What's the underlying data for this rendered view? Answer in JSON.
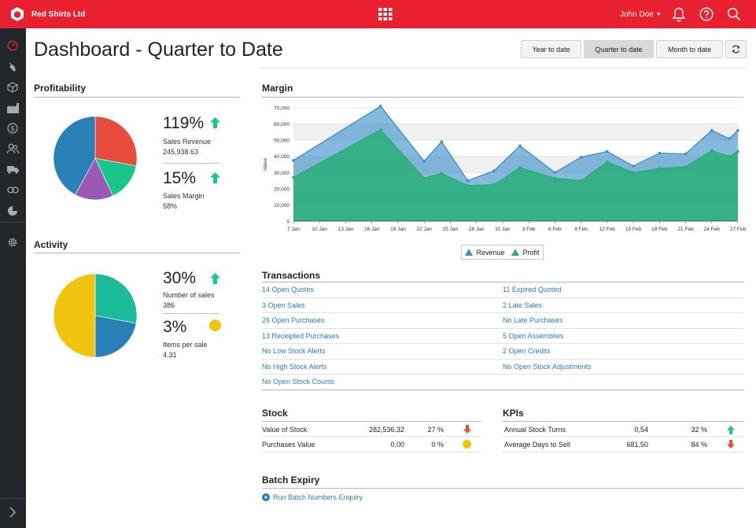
{
  "topbar": {
    "company": "Red Shirts Ltd",
    "user_name": "John Doe",
    "icons": [
      "company-logo-icon",
      "apps-grid-icon",
      "bell-icon",
      "help-icon",
      "search-icon"
    ]
  },
  "sidebar": {
    "icons": [
      "dashboard-gauge-icon",
      "sales-icon",
      "inventory-box-icon",
      "warehouse-icon",
      "currency-icon",
      "customers-icon",
      "shipping-truck-icon",
      "links-icon",
      "reports-pie-icon",
      "settings-gear-icon",
      "expand-chevron-icon"
    ]
  },
  "page": {
    "title": "Dashboard - Quarter to Date",
    "range_buttons": [
      "Year to date",
      "Quarter to date",
      "Month to date"
    ],
    "active_range": "Quarter to date",
    "refresh_icon": "refresh-icon"
  },
  "profitability": {
    "title": "Profitability",
    "pie": [
      {
        "value": 28,
        "color": "#e74c3c"
      },
      {
        "value": 15,
        "color": "#17c68a"
      },
      {
        "value": 15,
        "color": "#9b59b6"
      },
      {
        "value": 42,
        "color": "#2980b9"
      }
    ],
    "revenue_pct": "119%",
    "revenue_label": "Sales Revenue",
    "revenue_value": "245,938.63",
    "revenue_trend": "up",
    "margin_pct": "15%",
    "margin_label": "Sales Margin",
    "margin_value": "58%",
    "margin_trend": "up"
  },
  "activity": {
    "title": "Activity",
    "pie": [
      {
        "value": 28,
        "color": "#1abc9c"
      },
      {
        "value": 22,
        "color": "#2980b9"
      },
      {
        "value": 50,
        "color": "#f1c40f"
      }
    ],
    "sales_pct": "30%",
    "sales_label": "Number of sales",
    "sales_value": "386",
    "sales_trend": "up",
    "items_pct": "3%",
    "items_label": "Items per sale",
    "items_value": "4.31",
    "items_trend": "neutral"
  },
  "margin": {
    "title": "Margin",
    "legend_revenue": "Revenue",
    "legend_profit": "Profit"
  },
  "chart_data": {
    "type": "area",
    "title": "Margin",
    "ylabel": "Value",
    "xlabel": "",
    "ylim": [
      0,
      70000
    ],
    "yticks": [
      0,
      10000,
      20000,
      30000,
      40000,
      50000,
      60000,
      70000
    ],
    "ytick_labels": [
      "0",
      "10,000",
      "20,000",
      "30,000",
      "40,000",
      "50,000",
      "60,000",
      "70,000"
    ],
    "xtick_labels": [
      "7 Jan",
      "10 Jan",
      "13 Jan",
      "16 Jan",
      "19 Jan",
      "22 Jan",
      "25 Jan",
      "28 Jan",
      "31 Jan",
      "3 Feb",
      "6 Feb",
      "9 Feb",
      "12 Feb",
      "15 Feb",
      "18 Feb",
      "21 Feb",
      "24 Feb",
      "27 Feb"
    ],
    "x_start_day": 7,
    "x_end_day": 58,
    "series": [
      {
        "name": "Revenue",
        "color": "#3b8ec9",
        "x": [
          7,
          17,
          22,
          24,
          27,
          30,
          33,
          37,
          40,
          43,
          46,
          49,
          52,
          55,
          57,
          58
        ],
        "values": [
          37500,
          71000,
          37000,
          49000,
          25000,
          31000,
          46500,
          30000,
          39500,
          43000,
          34000,
          42000,
          41500,
          56000,
          51000,
          56000
        ]
      },
      {
        "name": "Profit",
        "color": "#27ae78",
        "x": [
          7,
          17,
          22,
          24,
          27,
          30,
          33,
          37,
          40,
          43,
          46,
          49,
          52,
          55,
          57,
          58
        ],
        "values": [
          27000,
          56500,
          26500,
          29500,
          22000,
          22500,
          33000,
          26500,
          25000,
          36500,
          30000,
          32500,
          33500,
          43500,
          40000,
          43000
        ]
      }
    ]
  },
  "transactions": {
    "title": "Transactions",
    "left": [
      "14 Open Quotes",
      "3 Open Sales",
      "26 Open Purchases",
      "13 Receipted Purchases",
      "No Low Stock Alerts",
      "No High Stock Alerts",
      "No Open Stock Counts"
    ],
    "right": [
      "11 Expired Quoted",
      "2 Late Sales",
      "No Late Purchases",
      "5 Open Assemblies",
      "2 Open Credits",
      "No Open Stock Adjustments"
    ]
  },
  "stock": {
    "title": "Stock",
    "rows": [
      {
        "label": "Value of Stock",
        "value": "282,536.32",
        "pct": "27 %",
        "trend": "down"
      },
      {
        "label": "Purchases Value",
        "value": "0,00",
        "pct": "0 %",
        "trend": "neutral"
      }
    ]
  },
  "kpis": {
    "title": "KPIs",
    "rows": [
      {
        "label": "Annual Stock Turns",
        "value": "0,54",
        "pct": "32 %",
        "trend": "up"
      },
      {
        "label": "Average Days to Sell",
        "value": "681,50",
        "pct": "84 %",
        "trend": "down"
      }
    ]
  },
  "batch": {
    "title": "Batch Expiry",
    "link": "Run Batch Numbers Enquiry"
  },
  "colors": {
    "brand_red": "#e8202f",
    "sidebar": "#23262b",
    "link": "#2e7cb8",
    "up_green": "#17c68a",
    "down_red": "#e74c3c",
    "neutral_yellow": "#f1c40f"
  }
}
